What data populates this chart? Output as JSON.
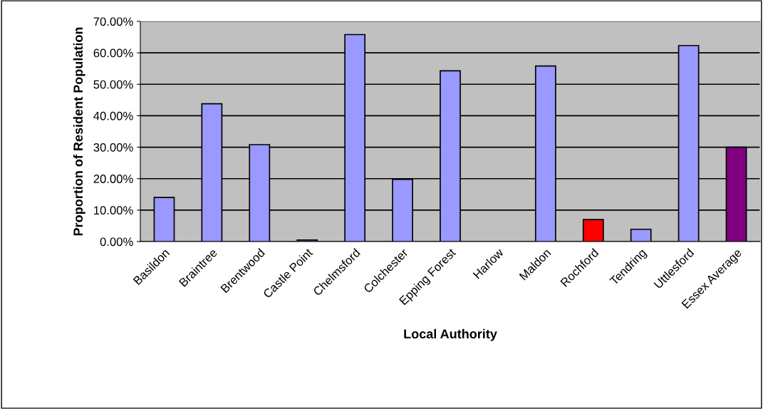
{
  "chart_data": {
    "type": "bar",
    "xlabel": "Local Authority",
    "ylabel": "Proportion of Resident Population",
    "categories": [
      "Basildon",
      "Braintree",
      "Brentwood",
      "Castle Point",
      "Chelmsford",
      "Colchester",
      "Epping Forest",
      "Harlow",
      "Maldon",
      "Rochford",
      "Tendring",
      "Uttlesford",
      "Essex Average"
    ],
    "values": [
      14.0,
      43.8,
      30.8,
      0.5,
      65.8,
      19.8,
      54.3,
      null,
      55.8,
      7.0,
      3.9,
      62.3,
      30.0
    ],
    "colors": [
      "#9999ff",
      "#9999ff",
      "#9999ff",
      "#9999ff",
      "#9999ff",
      "#9999ff",
      "#9999ff",
      "#9999ff",
      "#9999ff",
      "#ff0000",
      "#9999ff",
      "#9999ff",
      "#800080"
    ],
    "ylim": [
      0,
      70
    ],
    "yticks": [
      {
        "value": 0,
        "label": "0.00%"
      },
      {
        "value": 10,
        "label": "10.00%"
      },
      {
        "value": 20,
        "label": "20.00%"
      },
      {
        "value": 30,
        "label": "30.00%"
      },
      {
        "value": 40,
        "label": "40.00%"
      },
      {
        "value": 50,
        "label": "50.00%"
      },
      {
        "value": 60,
        "label": "60.00%"
      },
      {
        "value": 70,
        "label": "70.00%"
      }
    ],
    "grid": "y",
    "legend": false
  }
}
